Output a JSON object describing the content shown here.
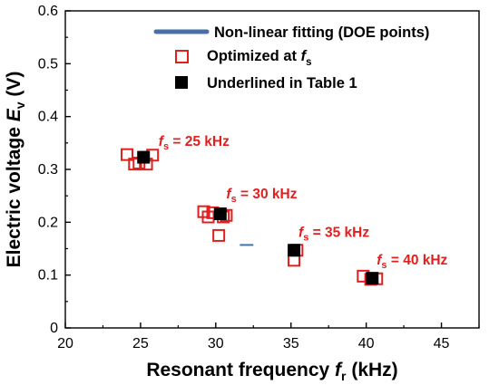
{
  "chart_data": {
    "type": "scatter",
    "xlabel": {
      "main": "Resonant frequency ",
      "var": "f",
      "sub": "r",
      "unit": " (kHz)"
    },
    "ylabel": {
      "main": "Electric voltage ",
      "var": "E",
      "sub": "v",
      "unit": " (V)"
    },
    "xlim": [
      20,
      47.5
    ],
    "ylim": [
      0,
      0.6
    ],
    "xticks": [
      "20",
      "25",
      "30",
      "35",
      "40",
      "45"
    ],
    "yticks": [
      "0",
      "0.1",
      "0.2",
      "0.3",
      "0.4",
      "0.5",
      "0.6"
    ],
    "grid": false,
    "legend": {
      "placement": "top-right",
      "entries": [
        {
          "label": "Non-linear fitting (DOE points)",
          "marker": "line"
        },
        {
          "label": "Optimized at ",
          "label_var": "f",
          "label_sub": "s",
          "marker": "open-square"
        },
        {
          "label": "Underlined in Table 1",
          "marker": "filled-square"
        }
      ]
    },
    "colors": {
      "fitting": "#4a6fa5",
      "optimized": "#e02020",
      "underlined": "#000000",
      "annotation": "#e02020"
    },
    "series": [
      {
        "name": "Non-linear fitting (DOE points)",
        "style": "line",
        "x": [
          31.6,
          32.5
        ],
        "y": [
          0.157,
          0.157
        ]
      },
      {
        "name": "Optimized at fs",
        "style": "open-square",
        "x": [
          24.1,
          24.6,
          24.9,
          25.4,
          25.8,
          29.2,
          29.5,
          29.8,
          30.2,
          30.5,
          30.7,
          35.2,
          35.4,
          39.8,
          40.3,
          40.7
        ],
        "y": [
          0.328,
          0.31,
          0.312,
          0.31,
          0.327,
          0.22,
          0.21,
          0.218,
          0.175,
          0.21,
          0.213,
          0.128,
          0.147,
          0.098,
          0.092,
          0.093
        ]
      },
      {
        "name": "Underlined in Table 1",
        "style": "filled-square",
        "x": [
          25.2,
          30.3,
          35.2,
          40.4
        ],
        "y": [
          0.323,
          0.216,
          0.147,
          0.094
        ]
      }
    ],
    "annotations": [
      {
        "prefix": "f",
        "sub": "s",
        "text": " = 25 kHz",
        "x": 26.2,
        "y": 0.345
      },
      {
        "prefix": "f",
        "sub": "s",
        "text": " = 30 kHz",
        "x": 30.7,
        "y": 0.245
      },
      {
        "prefix": "f",
        "sub": "s",
        "text": " = 35 kHz",
        "x": 35.5,
        "y": 0.172
      },
      {
        "prefix": "f",
        "sub": "s",
        "text": " = 40 kHz",
        "x": 40.7,
        "y": 0.12
      }
    ]
  }
}
